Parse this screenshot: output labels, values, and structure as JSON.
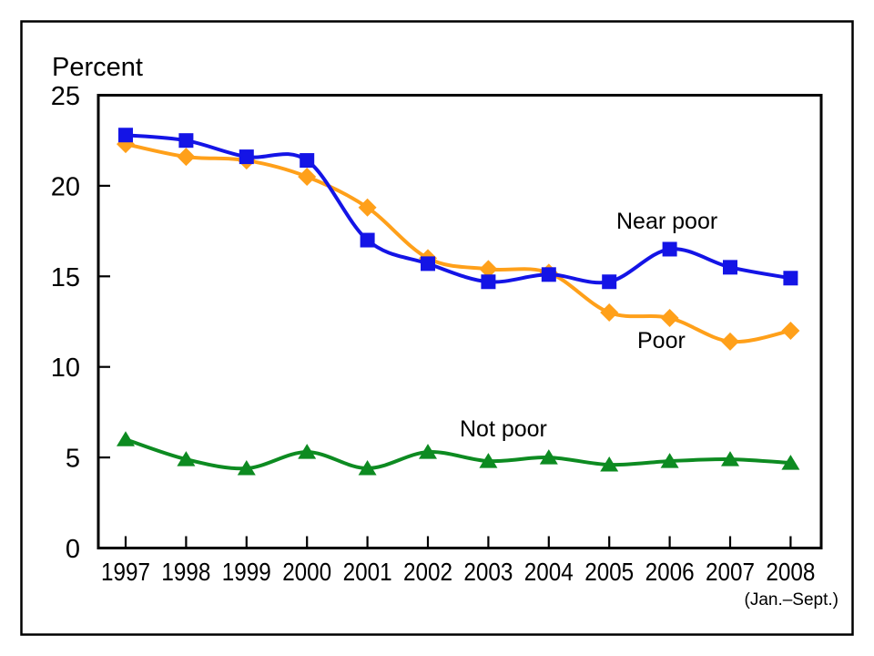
{
  "chart_data": {
    "type": "line",
    "title": "",
    "ylabel": "Percent",
    "xlabel": "",
    "x_note": "(Jan.–Sept.)",
    "categories": [
      "1997",
      "1998",
      "1999",
      "2000",
      "2001",
      "2002",
      "2003",
      "2004",
      "2005",
      "2006",
      "2007",
      "2008"
    ],
    "ylim": [
      0,
      25
    ],
    "yticks": [
      0,
      5,
      10,
      15,
      20,
      25
    ],
    "grid": false,
    "legend_position": "inline-labels",
    "axis_color": "#000000",
    "text_color": "#000000",
    "series": [
      {
        "name": "Near poor",
        "marker": "square",
        "color": "#1414e6",
        "values": [
          22.8,
          22.5,
          21.6,
          21.4,
          17.0,
          15.7,
          14.7,
          15.1,
          14.7,
          16.5,
          15.5,
          14.9
        ]
      },
      {
        "name": "Poor",
        "marker": "diamond",
        "color": "#ffa01a",
        "values": [
          22.3,
          21.6,
          21.4,
          20.5,
          18.8,
          16.0,
          15.4,
          15.2,
          13.0,
          12.7,
          11.4,
          12.0
        ]
      },
      {
        "name": "Not poor",
        "marker": "triangle",
        "color": "#0d8b21",
        "values": [
          6.0,
          4.9,
          4.4,
          5.3,
          4.4,
          5.3,
          4.8,
          5.0,
          4.6,
          4.8,
          4.9,
          4.7
        ]
      }
    ]
  }
}
